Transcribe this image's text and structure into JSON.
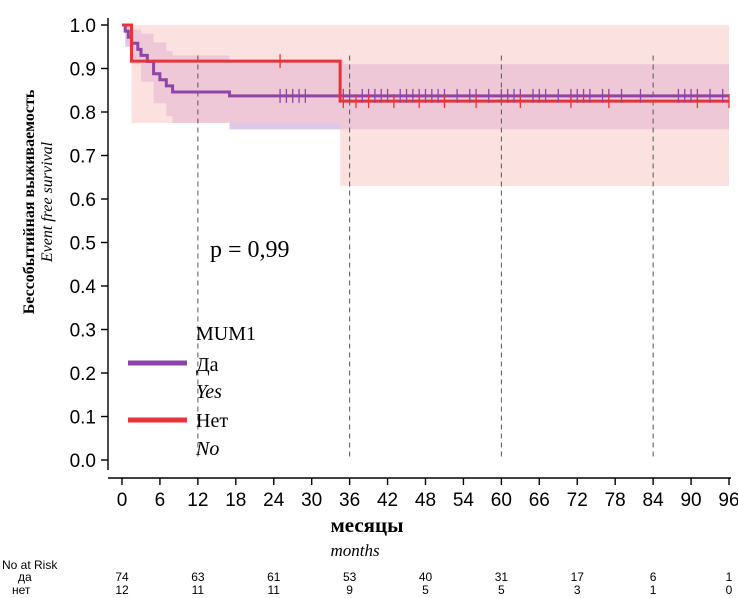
{
  "chart_data": {
    "type": "line",
    "ylabel": "Бессобытийная выживаемость",
    "ylabel_en": "Event free survival",
    "xlabel": "месяцы",
    "xlabel_en": "months",
    "xlim": [
      0,
      96
    ],
    "ylim": [
      0,
      1
    ],
    "x_ticks": [
      0,
      6,
      12,
      18,
      24,
      30,
      36,
      42,
      48,
      54,
      60,
      66,
      72,
      78,
      84,
      90,
      96
    ],
    "y_ticks": [
      "0.0",
      "0.1",
      "0.2",
      "0.3",
      "0.4",
      "0.5",
      "0.6",
      "0.7",
      "0.8",
      "0.9",
      "1.0"
    ],
    "reference_x": [
      12,
      36,
      60,
      84
    ],
    "annotation": "p = 0,99",
    "legend": {
      "title": "MUM1",
      "placement": "lower-left",
      "items": [
        {
          "label": "Да",
          "label_en": "Yes",
          "color": "#8e44a8"
        },
        {
          "label": "Нет",
          "label_en": "No",
          "color": "#e8333a"
        }
      ]
    },
    "series": [
      {
        "name": "Да",
        "color": "#8e44a8",
        "band_color": "#b886c9",
        "steps": [
          [
            0,
            1.0
          ],
          [
            0.5,
            0.986
          ],
          [
            1,
            0.972
          ],
          [
            1.5,
            0.958
          ],
          [
            2.5,
            0.944
          ],
          [
            3,
            0.93
          ],
          [
            4,
            0.916
          ],
          [
            5,
            0.888
          ],
          [
            6,
            0.874
          ],
          [
            7,
            0.86
          ],
          [
            8,
            0.846
          ],
          [
            17,
            0.837
          ],
          [
            96,
            0.837
          ]
        ],
        "ci_steps": [
          [
            0,
            1.0,
            1.0
          ],
          [
            0.5,
            1.0,
            0.95
          ],
          [
            1.5,
            0.99,
            0.91
          ],
          [
            3,
            0.98,
            0.87
          ],
          [
            5,
            0.96,
            0.82
          ],
          [
            7,
            0.94,
            0.79
          ],
          [
            8,
            0.93,
            0.775
          ],
          [
            17,
            0.92,
            0.76
          ],
          [
            35,
            0.91,
            0.76
          ],
          [
            96,
            0.91,
            0.76
          ]
        ],
        "censor_x": [
          25,
          26,
          27,
          28,
          29,
          35,
          36,
          38,
          39,
          40,
          41,
          42,
          44,
          45,
          46,
          47,
          48,
          49,
          50,
          51,
          53,
          55,
          56,
          58,
          60,
          61,
          62,
          63,
          65,
          66,
          67,
          69,
          71,
          72,
          73,
          74,
          76,
          77,
          79,
          82,
          88,
          89,
          90,
          91,
          93,
          95
        ]
      },
      {
        "name": "Нет",
        "color": "#e8333a",
        "band_color": "#f9c9c9",
        "steps": [
          [
            0,
            1.0
          ],
          [
            1.5,
            0.917
          ],
          [
            34.5,
            0.825
          ],
          [
            96,
            0.825
          ]
        ],
        "ci_steps": [
          [
            0,
            1.0,
            1.0
          ],
          [
            1.5,
            1.0,
            0.775
          ],
          [
            34.5,
            1.0,
            0.63
          ],
          [
            96,
            1.0,
            0.63
          ]
        ],
        "censor_x": [
          25,
          35,
          37,
          39,
          43,
          47,
          51,
          56,
          63,
          71,
          77,
          91,
          96
        ]
      }
    ],
    "risk_table": {
      "title": "No at Risk",
      "x": [
        0,
        12,
        24,
        36,
        48,
        60,
        72,
        84,
        96
      ],
      "rows": [
        {
          "label": "да",
          "values": [
            "74",
            "63",
            "61",
            "53",
            "40",
            "31",
            "17",
            "6",
            "1"
          ]
        },
        {
          "label": "нет",
          "values": [
            "12",
            "11",
            "11",
            "9",
            "5",
            "5",
            "3",
            "1",
            "0"
          ]
        }
      ]
    }
  }
}
